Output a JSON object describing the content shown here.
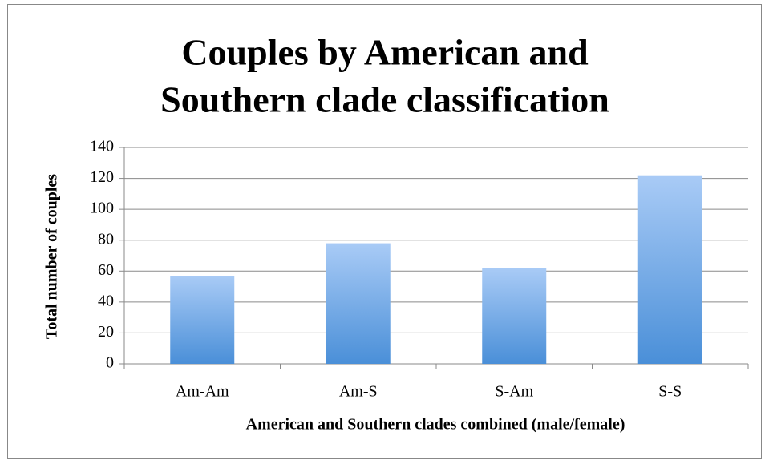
{
  "chart_data": {
    "type": "bar",
    "title": [
      "Couples by American and",
      "Southern clade classification"
    ],
    "x_label": "American and Southern clades combined (male/female)",
    "y_label": "Total number of couples",
    "categories": [
      "Am-Am",
      "Am-S",
      "S-Am",
      "S-S"
    ],
    "values": [
      57,
      78,
      62,
      122
    ],
    "color": [
      "#a9cbf6",
      "#4a8fd8"
    ],
    "ylim": [
      0,
      140
    ],
    "yticks": [
      0,
      20,
      40,
      60,
      80,
      100,
      120,
      140
    ],
    "grid": true
  }
}
